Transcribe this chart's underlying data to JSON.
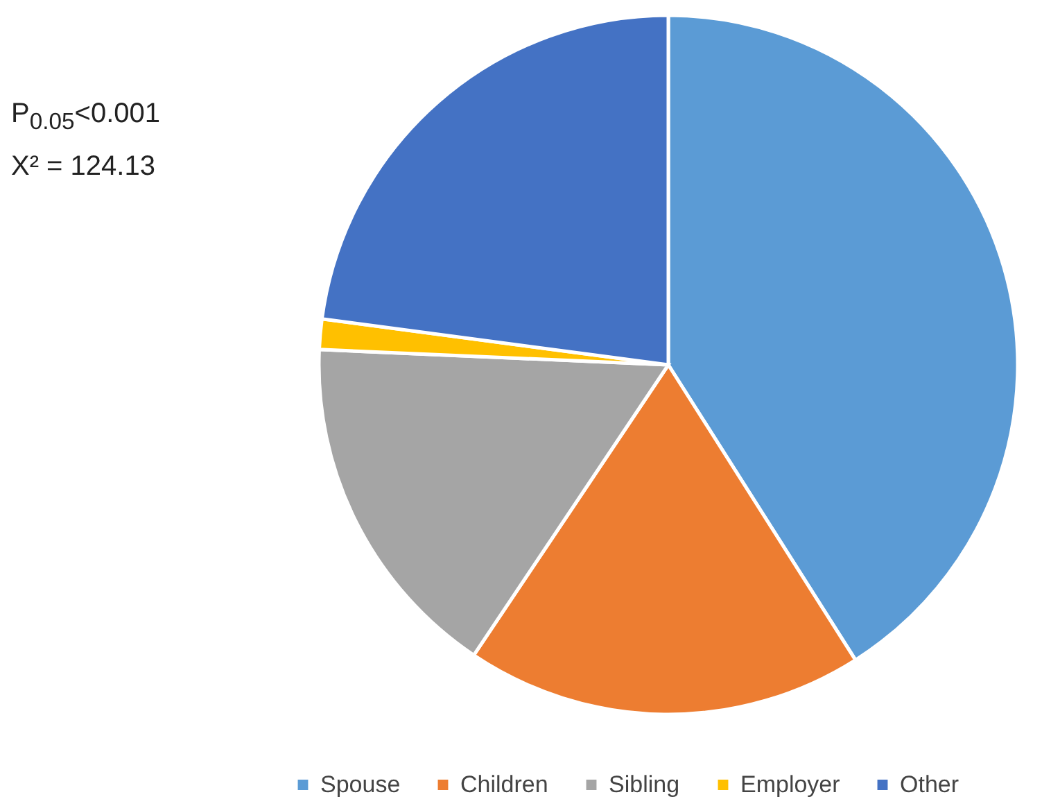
{
  "chart_data": {
    "type": "pie",
    "categories": [
      "Spouse",
      "Children",
      "Sibling",
      "Employer",
      "Other"
    ],
    "values": [
      41.0,
      18.4,
      16.3,
      1.4,
      22.9
    ],
    "colors": [
      "#5b9bd5",
      "#ed7d31",
      "#a5a5a5",
      "#ffc000",
      "#4472c4"
    ],
    "legend": "bottom",
    "annotations": [
      "P$_{0.05}$<0.001",
      "X² = 124.13"
    ]
  }
}
